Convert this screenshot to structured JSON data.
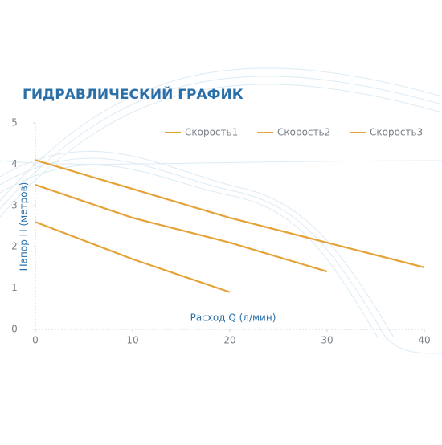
{
  "chart_data": {
    "type": "line",
    "title": "ГИДРАВЛИЧЕСКИЙ ГРАФИК",
    "x_label": "Расход Q (л/мин)",
    "y_label": "Напор Н (метров)",
    "x": [
      0,
      10,
      20,
      30,
      40
    ],
    "series": [
      {
        "name": "Скорость1",
        "color": "#e5a236",
        "values": [
          2.6,
          1.7,
          0.9,
          null,
          null
        ]
      },
      {
        "name": "Скорость2",
        "color": "#e5a236",
        "values": [
          3.5,
          2.7,
          2.1,
          1.4,
          null
        ]
      },
      {
        "name": "Скорость3",
        "color": "#e5a236",
        "values": [
          4.1,
          3.4,
          2.7,
          2.1,
          1.5
        ]
      }
    ],
    "xlim": [
      0,
      40
    ],
    "xticks": [
      0,
      10,
      20,
      30,
      40
    ],
    "ylim": [
      0,
      5
    ],
    "yticks": [
      0,
      1,
      2,
      3,
      4,
      5
    ]
  }
}
